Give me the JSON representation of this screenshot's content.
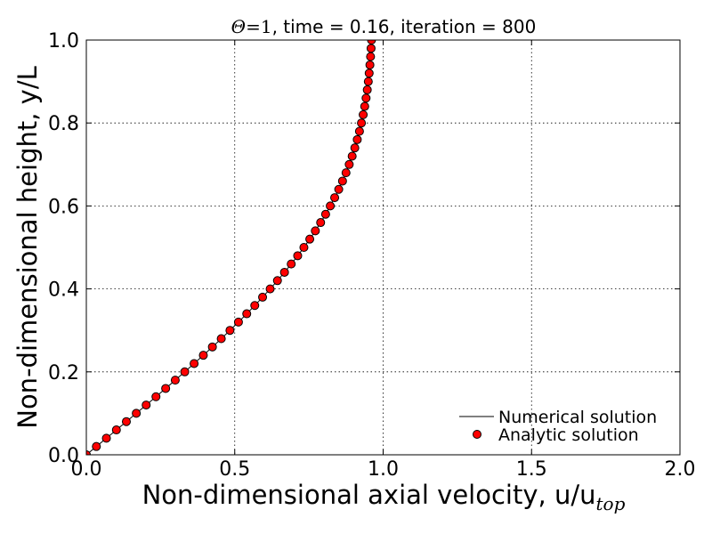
{
  "chart_data": {
    "type": "line",
    "title": {
      "theta": "Θ",
      "eq": "=1",
      "rest": ", time = 0.16, iteration = 800"
    },
    "xlabel": {
      "main": "Non-dimensional axial velocity, u/u",
      "sub": "top"
    },
    "ylabel": "Non-dimensional height, y/L",
    "xlim": [
      0.0,
      2.0
    ],
    "ylim": [
      0.0,
      1.0
    ],
    "xticks": [
      "0.0",
      "0.5",
      "1.0",
      "1.5",
      "2.0"
    ],
    "yticks": [
      "0.0",
      "0.2",
      "0.4",
      "0.6",
      "0.8",
      "1.0"
    ],
    "grid": true,
    "legend_position": "lower-right",
    "y": [
      0.0,
      0.02,
      0.04,
      0.06,
      0.08,
      0.1,
      0.12,
      0.14,
      0.16,
      0.18,
      0.2,
      0.22,
      0.24,
      0.26,
      0.28,
      0.3,
      0.32,
      0.34,
      0.36,
      0.38,
      0.4,
      0.42,
      0.44,
      0.46,
      0.48,
      0.5,
      0.52,
      0.54,
      0.56,
      0.58,
      0.6,
      0.62,
      0.64,
      0.66,
      0.68,
      0.7,
      0.72,
      0.74,
      0.76,
      0.78,
      0.8,
      0.82,
      0.84,
      0.86,
      0.88,
      0.9,
      0.92,
      0.94,
      0.96,
      0.98,
      1.0
    ],
    "series": [
      {
        "name": "Numerical solution",
        "style": "line",
        "color": "#000000",
        "x": [
          0.0,
          0.0338,
          0.0676,
          0.1013,
          0.1349,
          0.1683,
          0.2016,
          0.2346,
          0.2673,
          0.2996,
          0.3316,
          0.3631,
          0.3942,
          0.4247,
          0.4546,
          0.4839,
          0.5125,
          0.5404,
          0.5675,
          0.5938,
          0.6193,
          0.6439,
          0.6676,
          0.6903,
          0.7121,
          0.733,
          0.7528,
          0.7716,
          0.7894,
          0.8062,
          0.8219,
          0.8367,
          0.8504,
          0.8631,
          0.8749,
          0.8857,
          0.8956,
          0.9046,
          0.9128,
          0.9202,
          0.9268,
          0.9327,
          0.9379,
          0.9425,
          0.9465,
          0.95,
          0.9529,
          0.9554,
          0.9576,
          0.9593,
          0.9608
        ]
      },
      {
        "name": "Analytic solution",
        "style": "markers",
        "color": "#ff0000",
        "x": [
          0.0,
          0.0338,
          0.0676,
          0.1013,
          0.1349,
          0.1683,
          0.2016,
          0.2346,
          0.2673,
          0.2996,
          0.3316,
          0.3631,
          0.3942,
          0.4247,
          0.4546,
          0.4839,
          0.5125,
          0.5404,
          0.5675,
          0.5938,
          0.6193,
          0.6439,
          0.6676,
          0.6903,
          0.7121,
          0.733,
          0.7528,
          0.7716,
          0.7894,
          0.8062,
          0.8219,
          0.8367,
          0.8504,
          0.8631,
          0.8749,
          0.8857,
          0.8956,
          0.9046,
          0.9128,
          0.9202,
          0.9268,
          0.9327,
          0.9379,
          0.9425,
          0.9465,
          0.95,
          0.9529,
          0.9554,
          0.9576,
          0.9593,
          0.9608
        ]
      }
    ]
  }
}
